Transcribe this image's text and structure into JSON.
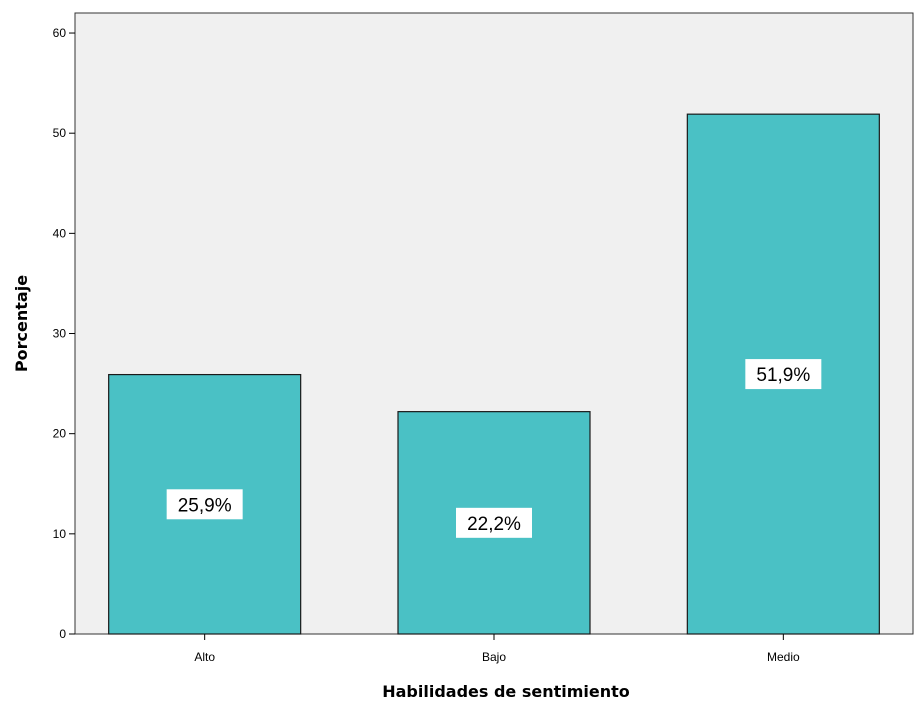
{
  "chart_data": {
    "type": "bar",
    "title": "",
    "xlabel": "Habilidades de sentimiento",
    "ylabel": "Porcentaje",
    "categories": [
      "Alto",
      "Bajo",
      "Medio"
    ],
    "values": [
      25.9,
      22.2,
      51.9
    ],
    "data_labels": [
      "25,9%",
      "22,2%",
      "51,9%"
    ],
    "ylim": [
      0,
      62
    ],
    "yticks": [
      0,
      10,
      20,
      30,
      40,
      50,
      60
    ],
    "ytick_labels": [
      "0",
      "10",
      "20",
      "30",
      "40",
      "50",
      "60"
    ],
    "grid": false,
    "legend": "none",
    "colors": {
      "bar_fill": "#4AC1C5",
      "bar_stroke": "#1a1a1a",
      "plot_background": "#F0F0F0",
      "page_background": "#FFFFFF",
      "label_box": "#FFFFFF"
    }
  }
}
